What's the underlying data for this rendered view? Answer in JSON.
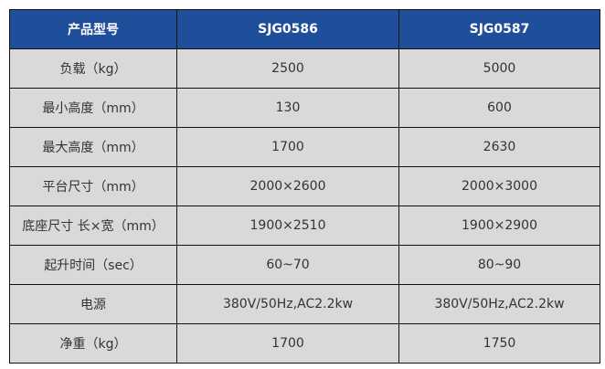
{
  "header": [
    "产品型号",
    "SJG0586",
    "SJG0587"
  ],
  "rows": [
    [
      "负载（kg）",
      "2500",
      "5000"
    ],
    [
      "最小高度（mm）",
      "130",
      "600"
    ],
    [
      "最大高度（mm）",
      "1700",
      "2630"
    ],
    [
      "平台尺寸（mm）",
      "2000×2600",
      "2000×3000"
    ],
    [
      "底座尺寸 长×宽（mm）",
      "1900×2510",
      "1900×2900"
    ],
    [
      "起升时间（sec）",
      "60~70",
      "80~90"
    ],
    [
      "电源",
      "380V/50Hz,AC2.2kw",
      "380V/50Hz,AC2.2kw"
    ],
    [
      "净重（kg）",
      "1700",
      "1750"
    ]
  ],
  "colors": {
    "header_bg": "#1f4e9a",
    "cell_bg": "#d9d9d9"
  }
}
